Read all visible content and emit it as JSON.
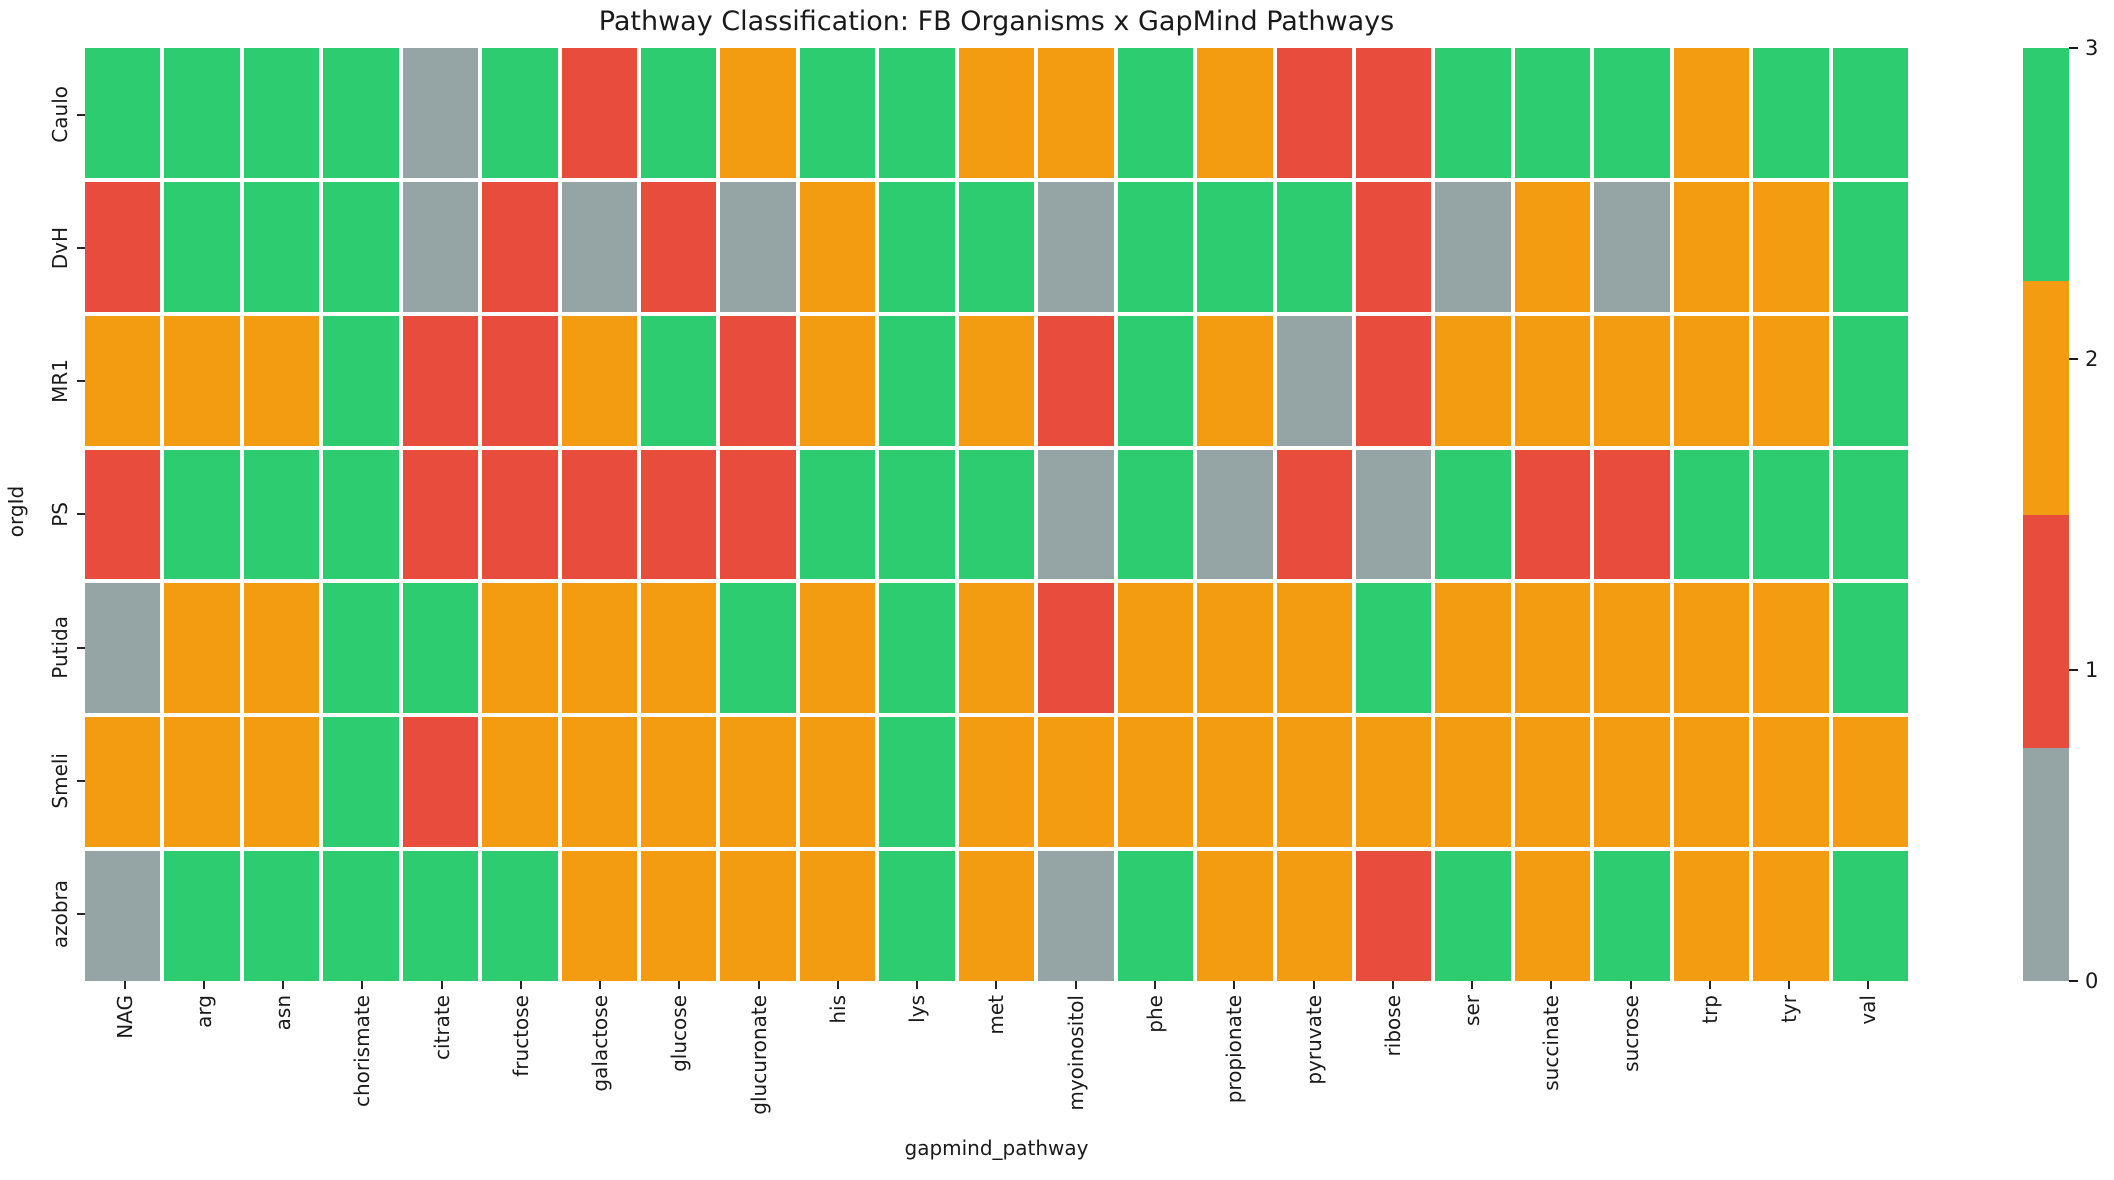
{
  "chart_data": {
    "type": "heatmap",
    "title": "Pathway Classification: FB Organisms x GapMind Pathways",
    "xlabel": "gapmind_pathway",
    "ylabel": "orgId",
    "x_categories": [
      "NAG",
      "arg",
      "asn",
      "chorismate",
      "citrate",
      "fructose",
      "galactose",
      "glucose",
      "glucuronate",
      "his",
      "lys",
      "met",
      "myoinositol",
      "phe",
      "propionate",
      "pyruvate",
      "ribose",
      "ser",
      "succinate",
      "sucrose",
      "trp",
      "tyr",
      "val"
    ],
    "y_categories": [
      "Caulo",
      "DvH",
      "MR1",
      "PS",
      "Putida",
      "Smeli",
      "azobra"
    ],
    "values": [
      [
        3,
        3,
        3,
        3,
        0,
        3,
        1,
        3,
        2,
        3,
        3,
        2,
        2,
        3,
        2,
        1,
        1,
        3,
        3,
        3,
        2,
        3,
        3
      ],
      [
        1,
        3,
        3,
        3,
        0,
        1,
        0,
        1,
        0,
        2,
        3,
        3,
        0,
        3,
        3,
        3,
        1,
        0,
        2,
        0,
        2,
        2,
        3
      ],
      [
        2,
        2,
        2,
        3,
        1,
        1,
        2,
        3,
        1,
        2,
        3,
        2,
        1,
        3,
        2,
        0,
        1,
        2,
        2,
        2,
        2,
        2,
        3
      ],
      [
        1,
        3,
        3,
        3,
        1,
        1,
        1,
        1,
        1,
        3,
        3,
        3,
        0,
        3,
        0,
        1,
        0,
        3,
        1,
        1,
        3,
        3,
        3
      ],
      [
        0,
        2,
        2,
        3,
        3,
        2,
        2,
        2,
        3,
        2,
        3,
        2,
        1,
        2,
        2,
        2,
        3,
        2,
        2,
        2,
        2,
        2,
        3
      ],
      [
        2,
        2,
        2,
        3,
        1,
        2,
        2,
        2,
        2,
        2,
        3,
        2,
        2,
        2,
        2,
        2,
        2,
        2,
        2,
        2,
        2,
        2,
        2
      ],
      [
        0,
        3,
        3,
        3,
        3,
        3,
        2,
        2,
        2,
        2,
        3,
        2,
        0,
        3,
        2,
        2,
        1,
        3,
        2,
        3,
        2,
        2,
        3
      ]
    ],
    "value_colors": {
      "0": "#95a5a6",
      "1": "#e74c3c",
      "2": "#f39c12",
      "3": "#2ecc71"
    },
    "grid_line_color": "#ffffff",
    "legend_position": "right",
    "colorbar": {
      "min": 0,
      "max": 3,
      "ticks": [
        3,
        2,
        1,
        0
      ],
      "segment_colors_top_to_bottom": [
        "#2ecc71",
        "#f39c12",
        "#e74c3c",
        "#95a5a6"
      ]
    }
  }
}
